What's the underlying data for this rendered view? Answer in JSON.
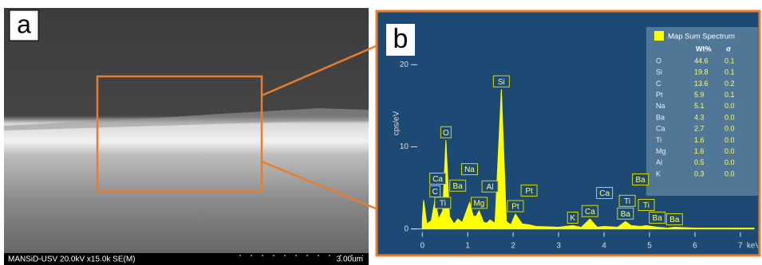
{
  "panel_labels": [
    "a",
    "b"
  ],
  "sem_caption": "MANSiD-USV 20.0kV x15.0k SE(M)",
  "sem_scale": "3.00um",
  "chart_data": {
    "type": "line",
    "x_label": "keV",
    "y_label": "cps/eV",
    "x": [
      0,
      0.03,
      0.1,
      0.2,
      0.28,
      0.36,
      0.45,
      0.52,
      0.6,
      0.7,
      0.78,
      0.88,
      1.04,
      1.12,
      1.18,
      1.25,
      1.35,
      1.42,
      1.49,
      1.6,
      1.74,
      1.85,
      1.95,
      2.05,
      2.2,
      2.35,
      2.5,
      3.0,
      3.31,
      3.5,
      3.69,
      3.85,
      4.01,
      4.3,
      4.47,
      4.6,
      4.8,
      4.93,
      5.17,
      5.4,
      5.55,
      6.0,
      7.0,
      7.3
    ],
    "series": [
      {
        "name": "Map Sum Spectrum",
        "color": "#ffff00",
        "values": [
          1.0,
          3.5,
          0.6,
          1.0,
          3.6,
          1.2,
          2.2,
          10.8,
          1.5,
          0.6,
          1.2,
          0.8,
          3.2,
          1.6,
          1.5,
          2.2,
          0.8,
          0.7,
          1.1,
          0.7,
          17.0,
          0.9,
          0.5,
          1.8,
          0.6,
          0.5,
          0.3,
          0.2,
          0.4,
          0.2,
          1.2,
          0.2,
          0.3,
          0.2,
          0.9,
          0.4,
          0.3,
          0.4,
          0.2,
          0.1,
          0.2,
          0.1,
          0.1,
          0.1
        ]
      }
    ],
    "xlim": [
      -0.25,
      7.3
    ],
    "ylim": [
      -1.2,
      24
    ],
    "xticks": [
      0,
      1,
      2,
      3,
      4,
      5,
      6,
      7
    ],
    "yticks": [
      0,
      10,
      20
    ],
    "annotations": [
      {
        "label": "Si",
        "x": 1.74
      },
      {
        "label": "O",
        "x": 0.52
      },
      {
        "label": "C",
        "x": 0.28
      },
      {
        "label": "Ti",
        "x": 0.45
      },
      {
        "label": "Ca",
        "x": 0.34
      },
      {
        "label": "Ba",
        "x": 0.78
      },
      {
        "label": "Na",
        "x": 1.04
      },
      {
        "label": "Mg",
        "x": 1.25
      },
      {
        "label": "Al",
        "x": 1.49
      },
      {
        "label": "Pt",
        "x": 2.05
      },
      {
        "label": "Pt",
        "x": 2.35
      },
      {
        "label": "K",
        "x": 3.31
      },
      {
        "label": "Ca",
        "x": 3.69
      },
      {
        "label": "Ca",
        "x": 4.01
      },
      {
        "label": "Ba",
        "x": 4.47
      },
      {
        "label": "Ti",
        "x": 4.51
      },
      {
        "label": "Ba",
        "x": 4.8
      },
      {
        "label": "Ba",
        "x": 5.17
      },
      {
        "label": "Ti",
        "x": 4.93
      },
      {
        "label": "Ba",
        "x": 5.55
      }
    ],
    "table": {
      "columns": [
        "Wt%",
        "σ"
      ],
      "rows": [
        [
          "O",
          44.6,
          0.1
        ],
        [
          "Si",
          19.8,
          0.1
        ],
        [
          "C",
          13.6,
          0.2
        ],
        [
          "Pt",
          5.9,
          0.1
        ],
        [
          "Na",
          5.1,
          {
            "value": 0,
            "label": "0.0"
          }
        ],
        [
          "Ba",
          4.3,
          {
            "value": 0,
            "label": "0.0"
          }
        ],
        [
          "Ca",
          2.7,
          {
            "value": 0,
            "label": "0.0"
          }
        ],
        [
          "Ti",
          1.6,
          {
            "value": 0,
            "label": "0.0"
          }
        ],
        [
          "Mg",
          1.6,
          {
            "value": 0,
            "label": "0.0"
          }
        ],
        [
          "Al",
          0.5,
          {
            "value": 0,
            "label": "0.0"
          }
        ],
        [
          "K",
          0.3,
          {
            "value": 0,
            "label": "0.0"
          }
        ]
      ]
    }
  }
}
